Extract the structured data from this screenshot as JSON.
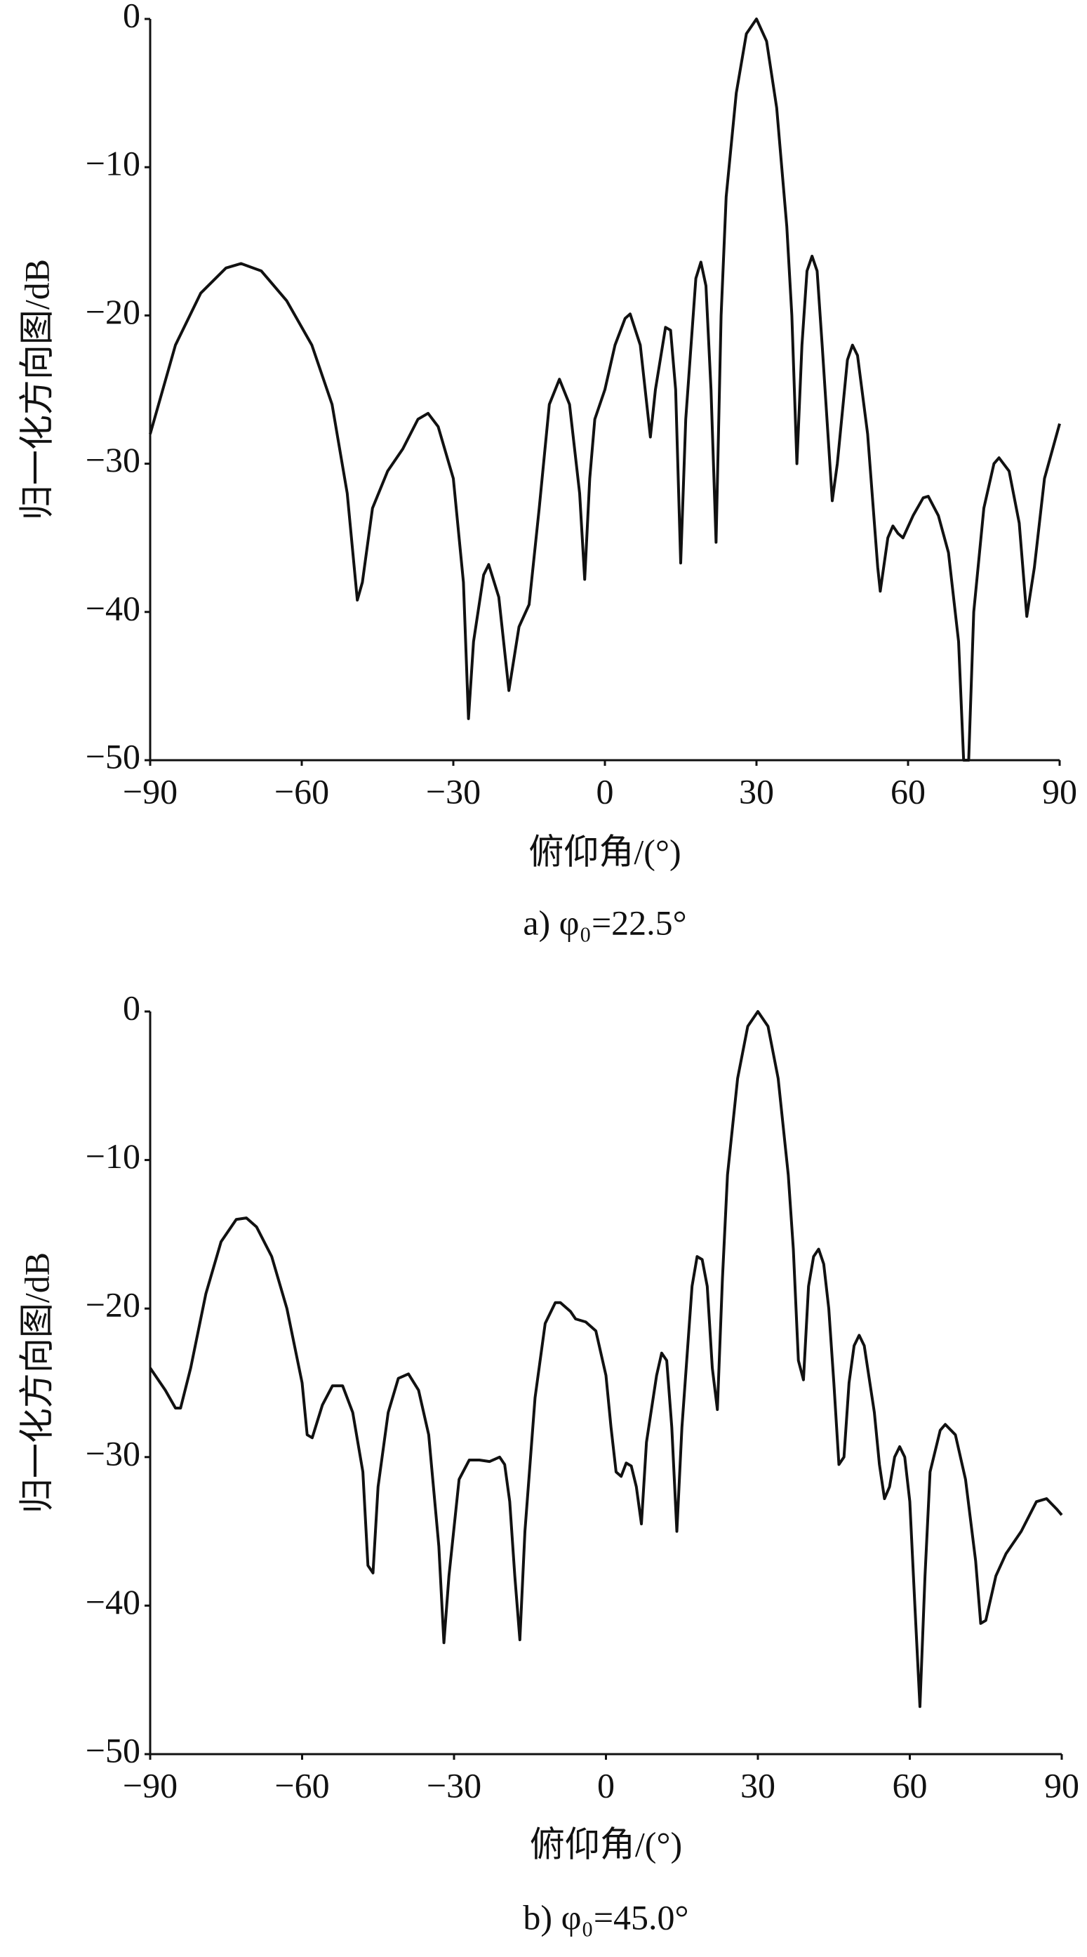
{
  "chart_data": [
    {
      "type": "line",
      "ylabel": "归一化方向图/dB",
      "xlabel": "俯仰角/(°)",
      "caption": "a) φ₀=22.5°",
      "color": "#111111",
      "xlim": [
        -90,
        90
      ],
      "ylim": [
        -50,
        0
      ],
      "xticks": [
        {
          "value": -90,
          "label": "−90"
        },
        {
          "value": -60,
          "label": "−60"
        },
        {
          "value": -30,
          "label": "−30"
        },
        0,
        30,
        60,
        90
      ],
      "yticks": [
        0,
        {
          "value": -10,
          "label": "−10"
        },
        {
          "value": -20,
          "label": "−20"
        },
        {
          "value": -30,
          "label": "−30"
        },
        {
          "value": -40,
          "label": "−40"
        },
        {
          "value": -50,
          "label": "−50"
        }
      ],
      "x": [
        -90,
        -85,
        -80,
        -75,
        -72,
        -68,
        -63,
        -58,
        -54,
        -51,
        -49,
        -48,
        -46,
        -43,
        -40,
        -37,
        -35,
        -33,
        -30,
        -28,
        -27,
        -26,
        -24,
        -23,
        -21,
        -19,
        -17,
        -15,
        -13,
        -11,
        -9,
        -7,
        -5,
        -4,
        -3,
        -2,
        0,
        2,
        4,
        5,
        7,
        9,
        10,
        12,
        13,
        14,
        15,
        16,
        18,
        19,
        20,
        21,
        22,
        23,
        24,
        26,
        28,
        30,
        32,
        34,
        36,
        37,
        38,
        39,
        40,
        41,
        42,
        43,
        45,
        46,
        48,
        49,
        50,
        52,
        54,
        54.5,
        56,
        57,
        58,
        59,
        61,
        63,
        64,
        66,
        68,
        70,
        71,
        72,
        73,
        75,
        77,
        78,
        80,
        82,
        83.5,
        85,
        87,
        90
      ],
      "values": [
        -28,
        -22,
        -18.5,
        -16.8,
        -16.5,
        -17,
        -19,
        -22,
        -26,
        -32,
        -39.2,
        -38,
        -33,
        -30.5,
        -29,
        -27,
        -26.6,
        -27.5,
        -31,
        -38,
        -47.2,
        -42,
        -37.5,
        -36.8,
        -39,
        -45.3,
        -41,
        -39.5,
        -33,
        -26,
        -24.3,
        -26,
        -32,
        -37.8,
        -31,
        -27,
        -25,
        -22,
        -20.2,
        -19.9,
        -22,
        -28.2,
        -25,
        -20.8,
        -21,
        -25,
        -36.7,
        -27,
        -17.5,
        -16.4,
        -18,
        -25,
        -35.3,
        -20,
        -12,
        -5,
        -1,
        0,
        -1.5,
        -6,
        -14,
        -20,
        -30,
        -22,
        -17,
        -16,
        -17,
        -22,
        -32.5,
        -30,
        -23,
        -22,
        -22.7,
        -28,
        -37,
        -38.6,
        -35,
        -34.2,
        -34.7,
        -35,
        -33.5,
        -32.3,
        -32.2,
        -33.5,
        -36,
        -42,
        -50,
        -50,
        -40,
        -33,
        -30,
        -29.6,
        -30.5,
        -34,
        -40.3,
        -37,
        -31,
        -27.3
      ]
    },
    {
      "type": "line",
      "ylabel": "归一化方向图/dB",
      "xlabel": "俯仰角/(°)",
      "caption": "b) φ₀=45.0°",
      "color": "#111111",
      "xlim": [
        -90,
        90
      ],
      "ylim": [
        -50,
        0
      ],
      "xticks": [
        {
          "value": -90,
          "label": "−90"
        },
        {
          "value": -60,
          "label": "−60"
        },
        {
          "value": -30,
          "label": "−30"
        },
        0,
        30,
        60,
        90
      ],
      "yticks": [
        0,
        {
          "value": -10,
          "label": "−10"
        },
        {
          "value": -20,
          "label": "−20"
        },
        {
          "value": -30,
          "label": "−30"
        },
        {
          "value": -40,
          "label": "−40"
        },
        {
          "value": -50,
          "label": "−50"
        }
      ],
      "x": [
        -90,
        -87,
        -85,
        -84,
        -82,
        -79,
        -76,
        -73,
        -71,
        -69,
        -66,
        -63,
        -60,
        -59,
        -58,
        -56,
        -54,
        -52,
        -50,
        -48,
        -47,
        -46,
        -45,
        -43,
        -41,
        -39,
        -37,
        -35,
        -33,
        -32,
        -31,
        -29,
        -27,
        -25,
        -23,
        -21,
        -20,
        -19,
        -18,
        -17,
        -16,
        -14,
        -12,
        -10,
        -9,
        -7,
        -6,
        -4,
        -2,
        0,
        1,
        2,
        3,
        4,
        5,
        6,
        7,
        8,
        10,
        11,
        12,
        13,
        14,
        15,
        17,
        18,
        19,
        20,
        21,
        22,
        23,
        24,
        26,
        28,
        30,
        32,
        34,
        36,
        37,
        38,
        39,
        40,
        41,
        42,
        43,
        44,
        45,
        46,
        47,
        48,
        49,
        50,
        51,
        53,
        54,
        55,
        56,
        57,
        58,
        59,
        60,
        61,
        62,
        63,
        64,
        66,
        67,
        69,
        71,
        73,
        74,
        75,
        77,
        79,
        82,
        85,
        87,
        89,
        90
      ],
      "values": [
        -24,
        -25.5,
        -26.7,
        -26.7,
        -24,
        -19,
        -15.5,
        -14,
        -13.9,
        -14.5,
        -16.5,
        -20,
        -25,
        -28.5,
        -28.7,
        -26.5,
        -25.2,
        -25.2,
        -27,
        -31,
        -37.3,
        -37.8,
        -32,
        -27,
        -24.7,
        -24.4,
        -25.5,
        -28.5,
        -36,
        -42.5,
        -38,
        -31.5,
        -30.2,
        -30.2,
        -30.3,
        -30,
        -30.5,
        -33,
        -38,
        -42.3,
        -35,
        -26,
        -21,
        -19.6,
        -19.6,
        -20.2,
        -20.7,
        -20.9,
        -21.5,
        -24.5,
        -28,
        -31,
        -31.3,
        -30.4,
        -30.6,
        -32,
        -34.5,
        -29,
        -24.5,
        -23,
        -23.5,
        -28,
        -35,
        -28,
        -18.5,
        -16.5,
        -16.7,
        -18.5,
        -24,
        -26.8,
        -18,
        -11,
        -4.5,
        -1,
        0,
        -1,
        -4.5,
        -11,
        -16,
        -23.5,
        -24.8,
        -18.5,
        -16.5,
        -16,
        -17,
        -20,
        -25,
        -30.5,
        -30,
        -25,
        -22.5,
        -21.8,
        -22.5,
        -27,
        -30.5,
        -32.8,
        -32,
        -30,
        -29.3,
        -30,
        -33,
        -40,
        -46.8,
        -38,
        -31,
        -28.2,
        -27.8,
        -28.5,
        -31.5,
        -37,
        -41.2,
        -41,
        -38,
        -36.5,
        -35,
        -33,
        -32.8,
        -33.5,
        -33.9
      ]
    }
  ]
}
